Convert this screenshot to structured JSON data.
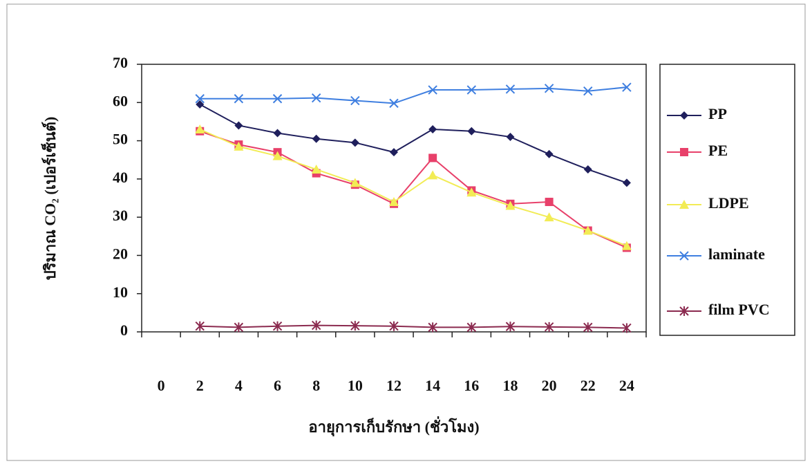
{
  "chart_data": {
    "type": "line",
    "y_label": "ปริมาณ CO₂ (เปอร์เซ็นต์)",
    "x_label": "อายุการเก็บรักษา (ชั่วโมง)",
    "categories": [
      "0",
      "2",
      "4",
      "6",
      "8",
      "10",
      "12",
      "14",
      "16",
      "18",
      "20",
      "22",
      "24"
    ],
    "series": [
      {
        "name": "PP",
        "color": "#1f1f5c",
        "marker": "diamond",
        "values": [
          null,
          59.5,
          54,
          52,
          50.5,
          49.5,
          47,
          53,
          52.5,
          51,
          46.5,
          42.5,
          39
        ]
      },
      {
        "name": "PE",
        "color": "#e8406a",
        "marker": "square",
        "values": [
          null,
          52.5,
          49,
          47,
          41.5,
          38.5,
          33.5,
          45.5,
          37,
          33.5,
          34,
          26.5,
          22
        ]
      },
      {
        "name": "LDPE",
        "color": "#f2ec55",
        "marker": "triangle",
        "values": [
          null,
          53,
          48.5,
          46,
          42.5,
          39,
          34,
          41,
          36.5,
          33,
          30,
          26.5,
          22.5
        ]
      },
      {
        "name": "laminate",
        "color": "#3f7fe0",
        "marker": "x",
        "values": [
          null,
          61,
          61,
          61,
          61.2,
          60.5,
          59.8,
          63.3,
          63.3,
          63.5,
          63.7,
          63,
          64
        ]
      },
      {
        "name": "film PVC",
        "color": "#8b2a4f",
        "marker": "star",
        "values": [
          null,
          1.5,
          1.2,
          1.5,
          1.7,
          1.6,
          1.5,
          1.2,
          1.2,
          1.4,
          1.3,
          1.2,
          1
        ]
      }
    ],
    "ylim": [
      0,
      70
    ],
    "yticks": [
      0,
      10,
      20,
      30,
      40,
      50,
      60,
      70
    ],
    "legend": "right"
  }
}
